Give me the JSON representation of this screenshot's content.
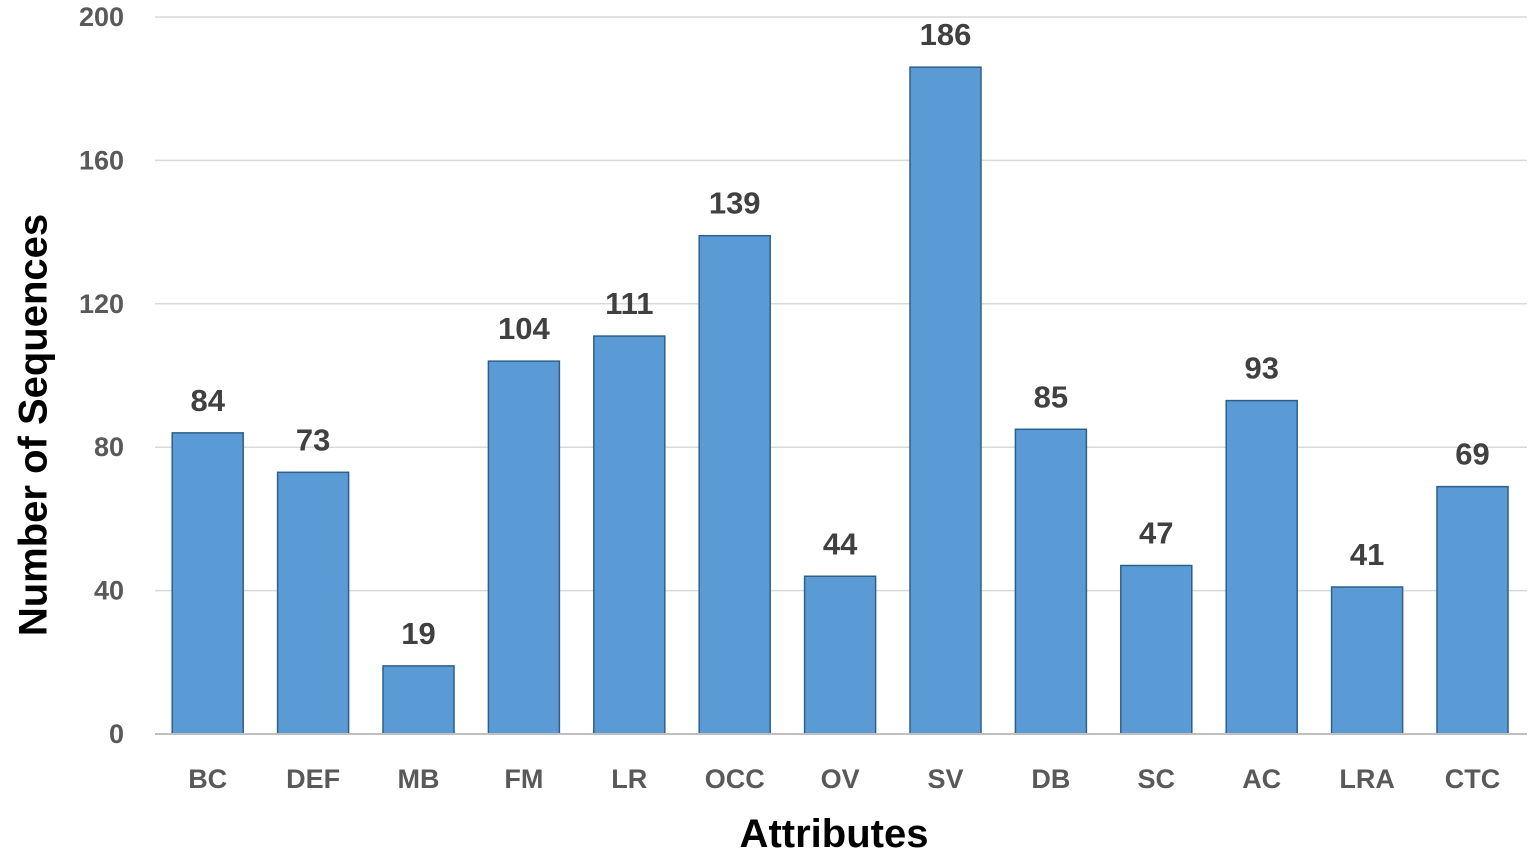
{
  "chart_data": {
    "type": "bar",
    "title": "",
    "xlabel": "Attributes",
    "ylabel": "Number of Sequences",
    "categories": [
      "BC",
      "DEF",
      "MB",
      "FM",
      "LR",
      "OCC",
      "OV",
      "SV",
      "DB",
      "SC",
      "AC",
      "LRA",
      "CTC"
    ],
    "values": [
      84,
      73,
      19,
      104,
      111,
      139,
      44,
      186,
      85,
      47,
      93,
      41,
      69
    ],
    "ylim": [
      0,
      200
    ],
    "yticks": [
      0,
      40,
      80,
      120,
      160,
      200
    ],
    "grid": true,
    "data_labels": true,
    "legend": "none",
    "colors": {
      "bar_fill": "#5b9bd5",
      "bar_stroke": "#2e5f8a",
      "grid": "#d9d9d9",
      "axis": "#bfbfbf",
      "tick_label": "#595959",
      "data_label": "#404040",
      "axis_title": "#000000"
    }
  }
}
